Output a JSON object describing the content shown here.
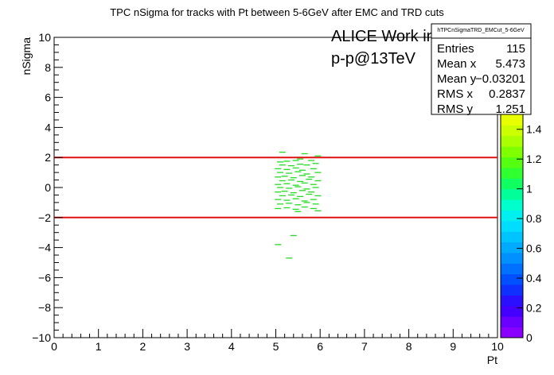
{
  "chart_data": {
    "type": "scatter",
    "title": "TPC nSigma for tracks with Pt between 5-6GeV after EMC and TRD cuts",
    "xlabel": "Pt",
    "ylabel": "nSigma",
    "xlim": [
      0,
      10
    ],
    "ylim": [
      -10,
      10
    ],
    "x_ticks": [
      "0",
      "1",
      "2",
      "3",
      "4",
      "5",
      "6",
      "7",
      "8",
      "9",
      "10"
    ],
    "y_ticks": [
      "−10",
      "−8",
      "−6",
      "−4",
      "−2",
      "0",
      "2",
      "4",
      "6",
      "8",
      "10"
    ],
    "annotations": [
      "ALICE Work in Progress",
      "p-p@13TeV"
    ],
    "cut_lines": [
      {
        "y": 2,
        "color": "#e01010"
      },
      {
        "y": -2,
        "color": "#e01010"
      }
    ],
    "colorbar": {
      "range": [
        0,
        1.5
      ],
      "tick_labels": [
        "0",
        "0.2",
        "0.4",
        "0.6",
        "0.8",
        "1",
        "1.2",
        "1.4"
      ],
      "colors": [
        "#8a00ff",
        "#6a00ff",
        "#4400ff",
        "#2a10ff",
        "#1030ff",
        "#0050ff",
        "#0070ff",
        "#0090ff",
        "#00aaff",
        "#00c4ff",
        "#00ddff",
        "#00f0f0",
        "#00ffcc",
        "#00ff99",
        "#10ff60",
        "#30ff30",
        "#55ff10",
        "#80ff00",
        "#aaff00",
        "#ccff00",
        "#e8ff00"
      ]
    },
    "stats": {
      "name": "hTPCnSigmaTRD_EMCut_5-6GeV",
      "rows": [
        {
          "label": "Entries",
          "value": "115"
        },
        {
          "label": "Mean x",
          "value": "5.473"
        },
        {
          "label": "Mean y",
          "value": "−0.03201"
        },
        {
          "label": "RMS x",
          "value": "0.2837"
        },
        {
          "label": "RMS y",
          "value": "1.251"
        }
      ]
    },
    "point_color": "#22dd22",
    "points": [
      [
        5.15,
        2.35
      ],
      [
        5.65,
        2.25
      ],
      [
        5.95,
        2.1
      ],
      [
        5.1,
        1.7
      ],
      [
        5.25,
        1.75
      ],
      [
        5.45,
        1.8
      ],
      [
        5.55,
        1.9
      ],
      [
        5.8,
        1.8
      ],
      [
        5.15,
        1.5
      ],
      [
        5.35,
        1.45
      ],
      [
        5.55,
        1.55
      ],
      [
        5.7,
        1.5
      ],
      [
        5.9,
        1.6
      ],
      [
        5.05,
        1.25
      ],
      [
        5.25,
        1.2
      ],
      [
        5.45,
        1.3
      ],
      [
        5.6,
        1.15
      ],
      [
        5.85,
        1.25
      ],
      [
        5.1,
        1.0
      ],
      [
        5.3,
        0.95
      ],
      [
        5.5,
        1.05
      ],
      [
        5.7,
        0.9
      ],
      [
        5.95,
        1.0
      ],
      [
        5.05,
        0.7
      ],
      [
        5.2,
        0.75
      ],
      [
        5.4,
        0.65
      ],
      [
        5.6,
        0.8
      ],
      [
        5.8,
        0.7
      ],
      [
        5.15,
        0.45
      ],
      [
        5.35,
        0.5
      ],
      [
        5.55,
        0.4
      ],
      [
        5.75,
        0.55
      ],
      [
        5.95,
        0.45
      ],
      [
        5.05,
        0.2
      ],
      [
        5.25,
        0.25
      ],
      [
        5.45,
        0.15
      ],
      [
        5.65,
        0.3
      ],
      [
        5.85,
        0.2
      ],
      [
        5.1,
        0.0
      ],
      [
        5.3,
        -0.05
      ],
      [
        5.5,
        0.05
      ],
      [
        5.7,
        -0.1
      ],
      [
        5.9,
        0.0
      ],
      [
        5.05,
        -0.3
      ],
      [
        5.2,
        -0.25
      ],
      [
        5.4,
        -0.35
      ],
      [
        5.6,
        -0.2
      ],
      [
        5.8,
        -0.3
      ],
      [
        5.15,
        -0.55
      ],
      [
        5.35,
        -0.5
      ],
      [
        5.55,
        -0.6
      ],
      [
        5.75,
        -0.45
      ],
      [
        5.95,
        -0.55
      ],
      [
        5.05,
        -0.8
      ],
      [
        5.25,
        -0.85
      ],
      [
        5.45,
        -0.75
      ],
      [
        5.65,
        -0.9
      ],
      [
        5.85,
        -0.8
      ],
      [
        5.1,
        -1.1
      ],
      [
        5.3,
        -1.05
      ],
      [
        5.5,
        -1.15
      ],
      [
        5.7,
        -1.0
      ],
      [
        5.9,
        -1.1
      ],
      [
        5.05,
        -1.4
      ],
      [
        5.25,
        -1.35
      ],
      [
        5.45,
        -1.45
      ],
      [
        5.65,
        -1.3
      ],
      [
        5.85,
        -1.4
      ],
      [
        5.5,
        -1.6
      ],
      [
        5.95,
        -1.55
      ],
      [
        5.4,
        -3.2
      ],
      [
        5.05,
        -3.8
      ],
      [
        5.3,
        -4.7
      ]
    ]
  }
}
